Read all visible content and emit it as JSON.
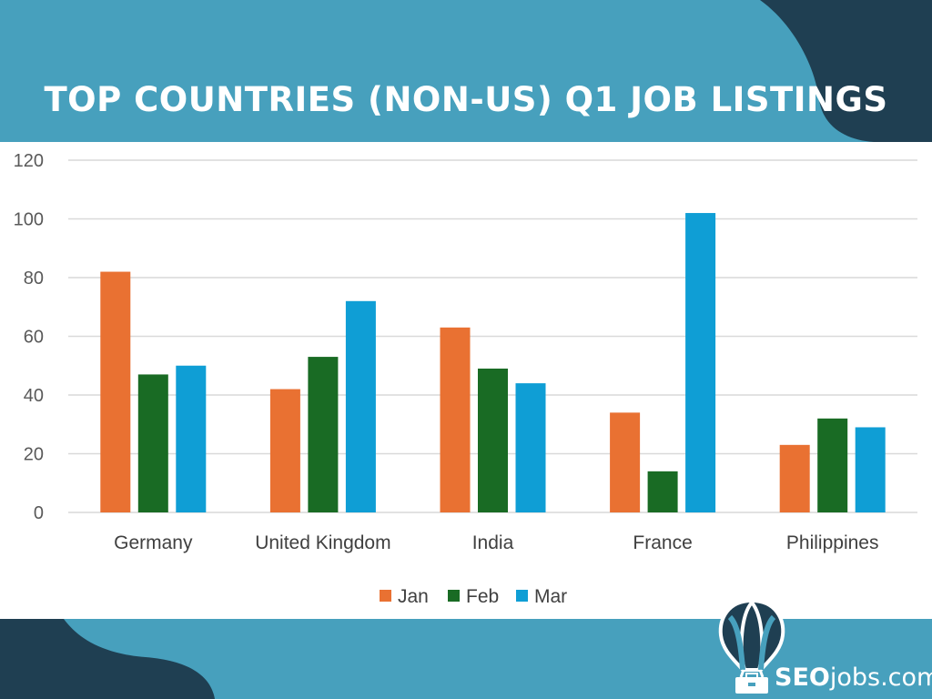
{
  "colors": {
    "header_bg": "#47a0bd",
    "header_dark": "#1f3f52",
    "footer_bg": "#47a0bd",
    "footer_dark": "#1f3f52",
    "gridline": "#d9d9d9",
    "brand_text": "#ffffff"
  },
  "brand": {
    "name_bold": "SEO",
    "name_rest": "jobs.com",
    "logo_icon": "hot-air-balloon-briefcase-icon"
  },
  "chart_data": {
    "type": "bar",
    "title": "TOP COUNTRIES (NON-US) Q1 JOB LISTINGS",
    "xlabel": "",
    "ylabel": "",
    "ylim": [
      0,
      120
    ],
    "yticks": [
      0,
      20,
      40,
      60,
      80,
      100,
      120
    ],
    "grid": true,
    "legend_position": "bottom",
    "categories": [
      "Germany",
      "United Kingdom",
      "India",
      "France",
      "Philippines"
    ],
    "series": [
      {
        "name": "Jan",
        "color": "#e97132",
        "values": [
          82,
          42,
          63,
          34,
          23
        ]
      },
      {
        "name": "Feb",
        "color": "#196b24",
        "values": [
          47,
          53,
          49,
          14,
          32
        ]
      },
      {
        "name": "Mar",
        "color": "#0f9ed5",
        "values": [
          50,
          72,
          44,
          102,
          29
        ]
      }
    ]
  }
}
